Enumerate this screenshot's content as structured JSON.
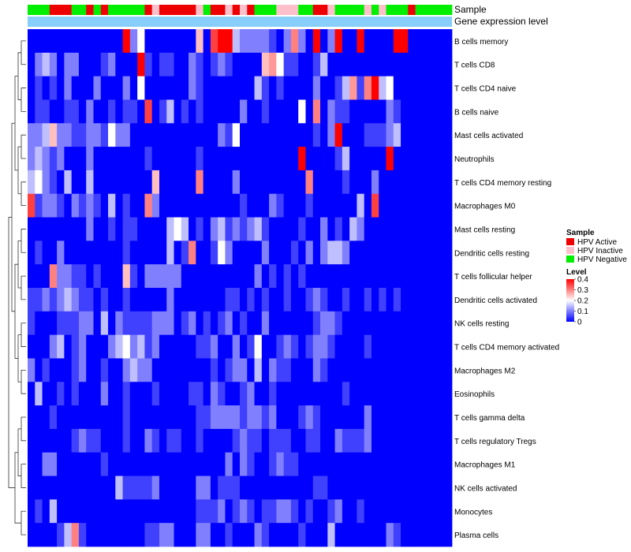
{
  "chart_data": {
    "type": "heatmap",
    "annotation_tracks": [
      "Sample",
      "Gene expression level"
    ],
    "sample_classes": [
      "Negative",
      "Negative",
      "Negative",
      "Active",
      "Active",
      "Active",
      "Negative",
      "Negative",
      "Active",
      "Negative",
      "Active",
      "Negative",
      "Negative",
      "Negative",
      "Negative",
      "Negative",
      "Active",
      "Inactive",
      "Active",
      "Active",
      "Active",
      "Active",
      "Active",
      "Inactive",
      "Negative",
      "Active",
      "Active",
      "Inactive",
      "Active",
      "Inactive",
      "Active",
      "Negative",
      "Negative",
      "Negative",
      "Inactive",
      "Inactive",
      "Inactive",
      "Negative",
      "Negative",
      "Active",
      "Active",
      "Inactive",
      "Negative",
      "Negative",
      "Negative",
      "Negative",
      "Inactive",
      "Negative",
      "Inactive",
      "Negative",
      "Negative",
      "Negative",
      "Active",
      "Negative",
      "Negative",
      "Negative",
      "Negative",
      "Negative"
    ],
    "rows": [
      "B cells memory",
      "T cells CD8",
      "T cells CD4 naive",
      "B cells naive",
      "Mast cells activated",
      "Neutrophils",
      "T cells CD4 memory resting",
      "Macrophages M0",
      "Mast cells resting",
      "Dendritic cells resting",
      "T cells follicular helper",
      "Dendritic cells activated",
      "NK cells resting",
      "T cells CD4 memory activated",
      "Macrophages M2",
      "Eosinophils",
      "T cells gamma delta",
      "T cells regulatory  Tregs",
      "Macrophages M1",
      "NK cells activated",
      "Monocytes",
      "Plasma cells"
    ],
    "values": [
      [
        0,
        0,
        0,
        0,
        0,
        0,
        0,
        0,
        0,
        0,
        0,
        0,
        0,
        0.4,
        0.1,
        0.2,
        0,
        0,
        0,
        0,
        0,
        0,
        0,
        0.25,
        0,
        0.35,
        0.4,
        0.4,
        0.15,
        0.1,
        0.1,
        0.1,
        0.1,
        0.05,
        0,
        0.1,
        0.3,
        0.1,
        0,
        0.4,
        0,
        0.1,
        0.4,
        0,
        0,
        0.4,
        0,
        0,
        0,
        0,
        0.4,
        0.4,
        0,
        0,
        0,
        0,
        0,
        0
      ],
      [
        0,
        0.1,
        0.15,
        0.1,
        0,
        0.1,
        0.1,
        0,
        0,
        0,
        0.05,
        0.1,
        0,
        0,
        0,
        0.4,
        0.05,
        0,
        0.05,
        0.05,
        0,
        0,
        0.1,
        0.05,
        0,
        0.05,
        0.1,
        0.05,
        0,
        0,
        0,
        0,
        0.25,
        0.28,
        0.2,
        0.05,
        0.05,
        0,
        0,
        0.05,
        0.15,
        0,
        0,
        0,
        0,
        0,
        0,
        0,
        0,
        0,
        0,
        0,
        0,
        0,
        0,
        0,
        0,
        0
      ],
      [
        0,
        0.05,
        0,
        0.05,
        0,
        0.1,
        0,
        0,
        0,
        0.1,
        0,
        0,
        0,
        0.1,
        0,
        0.2,
        0,
        0,
        0,
        0,
        0,
        0,
        0.1,
        0.05,
        0,
        0,
        0,
        0,
        0,
        0,
        0,
        0.15,
        0.05,
        0,
        0.05,
        0,
        0,
        0,
        0,
        0.1,
        0,
        0,
        0.05,
        0.15,
        0.28,
        0.05,
        0.3,
        0.4,
        0.15,
        0.2,
        0,
        0,
        0,
        0,
        0,
        0,
        0,
        0
      ],
      [
        0,
        0.05,
        0.05,
        0,
        0,
        0.05,
        0.05,
        0,
        0.1,
        0,
        0,
        0.05,
        0,
        0.05,
        0.05,
        0,
        0.35,
        0,
        0.05,
        0.15,
        0,
        0.05,
        0,
        0.05,
        0,
        0,
        0,
        0,
        0,
        0.1,
        0,
        0,
        0.05,
        0,
        0,
        0,
        0,
        0.2,
        0,
        0.3,
        0,
        0.1,
        0.05,
        0.05,
        0,
        0,
        0,
        0,
        0,
        0.1,
        0.05,
        0,
        0,
        0,
        0,
        0,
        0,
        0
      ],
      [
        0.1,
        0.1,
        0.15,
        0.25,
        0.1,
        0.1,
        0.05,
        0.05,
        0.1,
        0.1,
        0.05,
        0.2,
        0.1,
        0.1,
        0,
        0,
        0,
        0,
        0,
        0,
        0,
        0,
        0,
        0,
        0,
        0,
        0.1,
        0.05,
        0.2,
        0,
        0,
        0,
        0,
        0,
        0,
        0,
        0,
        0,
        0,
        0.05,
        0,
        0.1,
        0.4,
        0,
        0,
        0,
        0.05,
        0.05,
        0.05,
        0.1,
        0.15,
        0,
        0,
        0,
        0,
        0,
        0,
        0
      ],
      [
        0.1,
        0.15,
        0.1,
        0.05,
        0.1,
        0,
        0,
        0,
        0.1,
        0,
        0,
        0,
        0,
        0,
        0,
        0,
        0.05,
        0,
        0,
        0,
        0,
        0,
        0,
        0.05,
        0,
        0,
        0,
        0,
        0,
        0,
        0,
        0,
        0,
        0,
        0,
        0,
        0,
        0.4,
        0,
        0,
        0,
        0,
        0.05,
        0.15,
        0,
        0,
        0,
        0,
        0,
        0.4,
        0,
        0,
        0,
        0,
        0,
        0,
        0,
        0
      ],
      [
        0.15,
        0.2,
        0.1,
        0.05,
        0,
        0.15,
        0,
        0,
        0.15,
        0,
        0,
        0,
        0,
        0,
        0,
        0,
        0,
        0.25,
        0,
        0,
        0,
        0,
        0,
        0.3,
        0,
        0,
        0,
        0,
        0.1,
        0,
        0,
        0,
        0,
        0,
        0,
        0,
        0,
        0,
        0.3,
        0,
        0,
        0,
        0,
        0.05,
        0,
        0,
        0,
        0.1,
        0,
        0,
        0,
        0,
        0,
        0,
        0,
        0,
        0,
        0
      ],
      [
        0.35,
        0.05,
        0.1,
        0.1,
        0.05,
        0,
        0.1,
        0.05,
        0.1,
        0.05,
        0,
        0.15,
        0,
        0.05,
        0,
        0,
        0.3,
        0.1,
        0,
        0,
        0,
        0,
        0,
        0,
        0,
        0,
        0,
        0,
        0,
        0.05,
        0,
        0,
        0,
        0.1,
        0.05,
        0,
        0,
        0,
        0.05,
        0,
        0,
        0,
        0,
        0,
        0,
        0.15,
        0,
        0.35,
        0,
        0,
        0,
        0,
        0,
        0,
        0,
        0,
        0,
        0
      ],
      [
        0,
        0,
        0,
        0,
        0,
        0,
        0,
        0,
        0.1,
        0,
        0,
        0.05,
        0,
        0.05,
        0.05,
        0,
        0,
        0,
        0,
        0.15,
        0.2,
        0.15,
        0,
        0.05,
        0,
        0.1,
        0.15,
        0.05,
        0.1,
        0.05,
        0.1,
        0.15,
        0.05,
        0,
        0,
        0,
        0,
        0.05,
        0,
        0,
        0.1,
        0,
        0.05,
        0,
        0.15,
        0.1,
        0,
        0,
        0,
        0,
        0,
        0,
        0,
        0,
        0,
        0,
        0,
        0
      ],
      [
        0,
        0.05,
        0,
        0,
        0.1,
        0,
        0,
        0,
        0,
        0,
        0,
        0,
        0,
        0.05,
        0,
        0,
        0,
        0,
        0,
        0.15,
        0,
        0.05,
        0.3,
        0,
        0,
        0.05,
        0.2,
        0.1,
        0,
        0,
        0,
        0,
        0.1,
        0,
        0,
        0,
        0.05,
        0,
        0.1,
        0,
        0.1,
        0.15,
        0.15,
        0.1,
        0,
        0,
        0,
        0,
        0,
        0,
        0,
        0,
        0,
        0,
        0,
        0,
        0,
        0
      ],
      [
        0,
        0,
        0,
        0.3,
        0.1,
        0.1,
        0.05,
        0.05,
        0,
        0.05,
        0,
        0,
        0,
        0.25,
        0.05,
        0,
        0.1,
        0.1,
        0.1,
        0.1,
        0.1,
        0,
        0,
        0,
        0,
        0,
        0,
        0,
        0,
        0,
        0,
        0.1,
        0,
        0.05,
        0,
        0.05,
        0,
        0.05,
        0,
        0,
        0,
        0,
        0,
        0,
        0,
        0,
        0,
        0,
        0,
        0,
        0,
        0,
        0,
        0,
        0,
        0,
        0,
        0
      ],
      [
        0.05,
        0.05,
        0.1,
        0.05,
        0.1,
        0.15,
        0.1,
        0.05,
        0.05,
        0,
        0.05,
        0,
        0,
        0.05,
        0,
        0,
        0,
        0,
        0,
        0.1,
        0,
        0,
        0,
        0,
        0,
        0,
        0,
        0.05,
        0.05,
        0,
        0.05,
        0,
        0.05,
        0,
        0,
        0.05,
        0,
        0,
        0.05,
        0.1,
        0.05,
        0,
        0,
        0.05,
        0,
        0,
        0.05,
        0,
        0.05,
        0,
        0.05,
        0,
        0,
        0,
        0,
        0,
        0,
        0
      ],
      [
        0.05,
        0,
        0,
        0,
        0.05,
        0.05,
        0.05,
        0.1,
        0.1,
        0,
        0.15,
        0,
        0.1,
        0.05,
        0.05,
        0.05,
        0.05,
        0.1,
        0.1,
        0.1,
        0,
        0.05,
        0.1,
        0,
        0.05,
        0,
        0.05,
        0.1,
        0,
        0.05,
        0,
        0,
        0.1,
        0,
        0,
        0,
        0,
        0,
        0,
        0.05,
        0.1,
        0.1,
        0.05,
        0,
        0,
        0,
        0,
        0,
        0,
        0,
        0,
        0,
        0,
        0,
        0,
        0,
        0,
        0
      ],
      [
        0,
        0,
        0,
        0.1,
        0.15,
        0,
        0.05,
        0.1,
        0,
        0,
        0,
        0.1,
        0.15,
        0.2,
        0.1,
        0.15,
        0.05,
        0.1,
        0,
        0,
        0,
        0,
        0,
        0.05,
        0.05,
        0.1,
        0,
        0,
        0.1,
        0,
        0.05,
        0.2,
        0,
        0,
        0.05,
        0.1,
        0.05,
        0,
        0.05,
        0.1,
        0.1,
        0.05,
        0,
        0,
        0,
        0,
        0.05,
        0,
        0,
        0,
        0,
        0,
        0,
        0,
        0,
        0,
        0,
        0
      ],
      [
        0.1,
        0,
        0.05,
        0,
        0,
        0,
        0.05,
        0.1,
        0,
        0,
        0.05,
        0,
        0,
        0.1,
        0.15,
        0.1,
        0.1,
        0,
        0,
        0,
        0,
        0,
        0,
        0,
        0,
        0.05,
        0,
        0.05,
        0.1,
        0.1,
        0,
        0.15,
        0,
        0.1,
        0.05,
        0.05,
        0,
        0,
        0,
        0.1,
        0.05,
        0,
        0,
        0,
        0,
        0,
        0,
        0,
        0,
        0,
        0,
        0,
        0,
        0,
        0,
        0,
        0,
        0
      ],
      [
        0,
        0.15,
        0,
        0,
        0.05,
        0,
        0.05,
        0,
        0,
        0,
        0.1,
        0,
        0,
        0.05,
        0,
        0,
        0,
        0.05,
        0,
        0,
        0,
        0,
        0.05,
        0.05,
        0,
        0.1,
        0.05,
        0,
        0,
        0.05,
        0.1,
        0,
        0,
        0.05,
        0,
        0,
        0,
        0,
        0,
        0,
        0,
        0,
        0,
        0.05,
        0,
        0,
        0,
        0,
        0,
        0,
        0,
        0,
        0,
        0,
        0,
        0,
        0,
        0
      ],
      [
        0,
        0,
        0,
        0.05,
        0,
        0,
        0,
        0,
        0,
        0,
        0,
        0,
        0,
        0.05,
        0,
        0,
        0,
        0,
        0,
        0,
        0,
        0,
        0,
        0.05,
        0.05,
        0.1,
        0.1,
        0.1,
        0.1,
        0.05,
        0.1,
        0.1,
        0.05,
        0.1,
        0,
        0,
        0,
        0.05,
        0.1,
        0.05,
        0,
        0,
        0,
        0,
        0,
        0,
        0.1,
        0,
        0,
        0,
        0,
        0,
        0,
        0,
        0,
        0,
        0,
        0
      ],
      [
        0,
        0,
        0,
        0,
        0,
        0,
        0.05,
        0.1,
        0.05,
        0.05,
        0,
        0,
        0,
        0.05,
        0,
        0,
        0.1,
        0.05,
        0,
        0.05,
        0.05,
        0,
        0,
        0.05,
        0,
        0,
        0,
        0,
        0.05,
        0.1,
        0.05,
        0.05,
        0,
        0.05,
        0.05,
        0.05,
        0,
        0,
        0.05,
        0.05,
        0,
        0,
        0.1,
        0.05,
        0.05,
        0.05,
        0.1,
        0,
        0,
        0,
        0,
        0,
        0,
        0,
        0,
        0,
        0,
        0
      ],
      [
        0,
        0,
        0.1,
        0.1,
        0,
        0,
        0,
        0,
        0,
        0,
        0.05,
        0,
        0,
        0,
        0,
        0,
        0,
        0,
        0,
        0,
        0,
        0,
        0,
        0,
        0,
        0,
        0,
        0.1,
        0,
        0.1,
        0.05,
        0,
        0,
        0.05,
        0.1,
        0.05,
        0.05,
        0,
        0,
        0,
        0,
        0,
        0,
        0,
        0,
        0,
        0,
        0,
        0,
        0,
        0,
        0,
        0,
        0,
        0,
        0,
        0,
        0
      ],
      [
        0,
        0,
        0,
        0,
        0,
        0,
        0,
        0,
        0,
        0,
        0,
        0,
        0.15,
        0.05,
        0.05,
        0.05,
        0.05,
        0.1,
        0,
        0,
        0,
        0,
        0,
        0.1,
        0.1,
        0,
        0.05,
        0.05,
        0.05,
        0,
        0,
        0,
        0,
        0,
        0,
        0,
        0,
        0,
        0,
        0.05,
        0.05,
        0,
        0,
        0,
        0,
        0,
        0,
        0,
        0,
        0,
        0,
        0,
        0,
        0,
        0,
        0,
        0,
        0
      ],
      [
        0,
        0.05,
        0,
        0.15,
        0,
        0,
        0,
        0,
        0,
        0,
        0,
        0,
        0,
        0,
        0,
        0,
        0,
        0,
        0,
        0,
        0,
        0,
        0,
        0.05,
        0.05,
        0.05,
        0.1,
        0,
        0.05,
        0.1,
        0.05,
        0,
        0.05,
        0.05,
        0.1,
        0.1,
        0.05,
        0,
        0.05,
        0,
        0,
        0.05,
        0.1,
        0,
        0,
        0.05,
        0,
        0,
        0,
        0,
        0,
        0,
        0,
        0,
        0,
        0,
        0,
        0
      ],
      [
        0,
        0,
        0,
        0,
        0.05,
        0.15,
        0.3,
        0.05,
        0,
        0,
        0,
        0,
        0,
        0,
        0,
        0,
        0.05,
        0.05,
        0.1,
        0.1,
        0,
        0,
        0,
        0.1,
        0.1,
        0,
        0,
        0.05,
        0,
        0,
        0,
        0.1,
        0.05,
        0,
        0,
        0,
        0,
        0.05,
        0,
        0,
        0,
        0.15,
        0,
        0,
        0,
        0,
        0,
        0,
        0,
        0.1,
        0.05,
        0,
        0,
        0,
        0,
        0,
        0,
        0
      ]
    ],
    "legend": {
      "sample_title": "Sample",
      "sample_items": [
        {
          "label": "HPV Active",
          "color": "#ee0000"
        },
        {
          "label": "HPV Inactive",
          "color": "#ffc0cb"
        },
        {
          "label": "HPV Negative",
          "color": "#00ee00"
        }
      ],
      "level_title": "Level",
      "level_ticks": [
        "0.4",
        "0.3",
        "0.2",
        "0.1",
        "0"
      ],
      "level_tick_values": [
        0.4,
        0.3,
        0.2,
        0.1,
        0
      ],
      "range": [
        0,
        0.4
      ]
    },
    "colors": {
      "low": "#0000ff",
      "mid": "#ffffff",
      "high": "#ff0000",
      "gene_track": "#87cefa",
      "class_colors": {
        "Active": "#ee0000",
        "Inactive": "#ffc0cb",
        "Negative": "#00ee00"
      }
    }
  }
}
